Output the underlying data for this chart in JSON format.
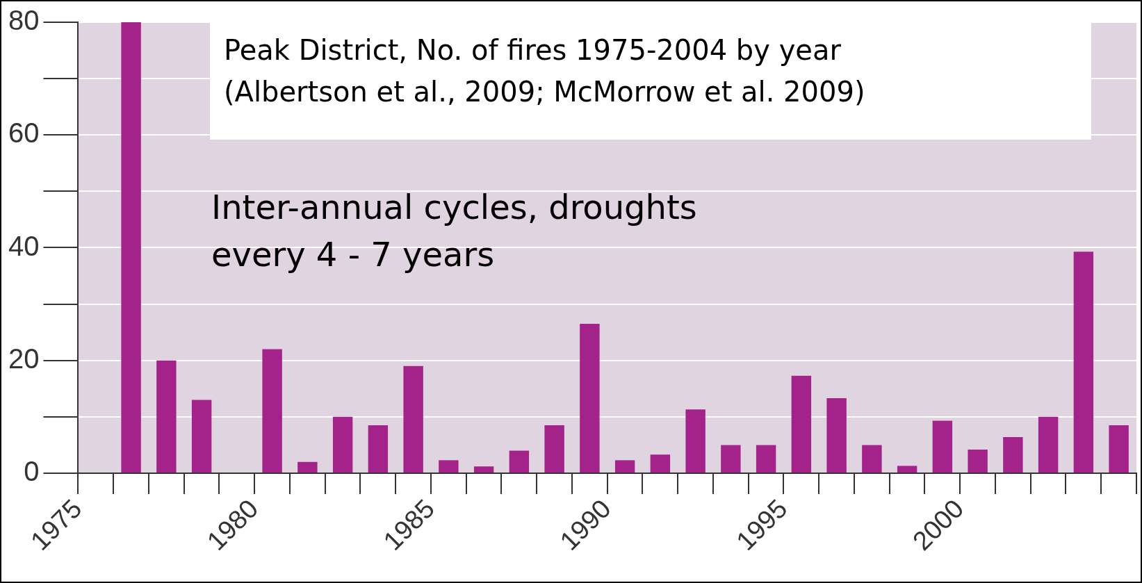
{
  "chart_data": {
    "type": "histogram",
    "title": "Peak District, No. of fires 1975-2004 by year",
    "subtitle": "(Albertson et al., 2009; McMorrow et al. 2009)",
    "annotations": [
      "Inter-annual cycles, droughts every 4 - 7 years"
    ],
    "bins": [
      1975,
      1976,
      1977,
      1978,
      1979,
      1980,
      1981,
      1982,
      1983,
      1984,
      1985,
      1986,
      1987,
      1988,
      1989,
      1990,
      1991,
      1992,
      1993,
      1994,
      1995,
      1996,
      1997,
      1998,
      1999,
      2000,
      2001,
      2002,
      2003,
      2004,
      2005
    ],
    "values": [
      0,
      80,
      20,
      13,
      0,
      22,
      2,
      10,
      8.5,
      19,
      2.3,
      1.2,
      4,
      8.5,
      26.5,
      2.3,
      3.3,
      11.3,
      5,
      5,
      17.3,
      13.3,
      5,
      1.3,
      9.3,
      4.2,
      6.4,
      10,
      39.3,
      8.5
    ],
    "color": "#a3238a",
    "xlim": [
      1975,
      2005
    ],
    "xticks": [
      1975,
      1980,
      1985,
      1990,
      1995,
      2000
    ],
    "ylim": [
      0,
      80
    ],
    "yticks": [
      0,
      {
        "value": 10,
        "label": null
      },
      20,
      {
        "value": 30,
        "label": null
      },
      40,
      {
        "value": 50,
        "label": null
      },
      60,
      {
        "value": 70,
        "label": null
      },
      80
    ],
    "grid": "y"
  }
}
